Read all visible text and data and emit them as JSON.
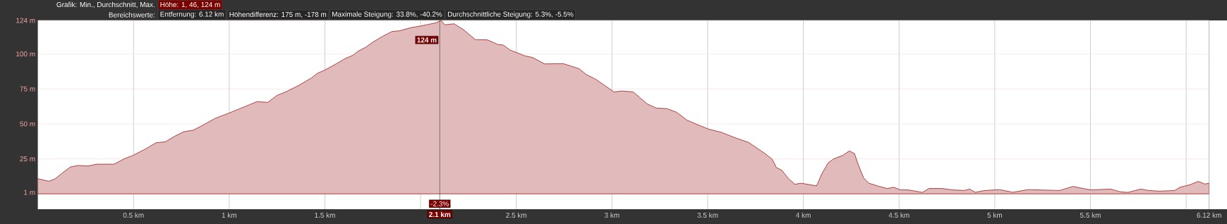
{
  "chart_data": {
    "type": "area",
    "title": "Grafik: Min., Durchschnitt, Max.",
    "subtitle": "Bereichswerte:",
    "annotations": [
      "Höhe: 1, 46, 124 m",
      "Entfernung: 6.12 km",
      "Höhendifferenz: 175 m, -178 m",
      "Maximale Steigung: 33.8%, -40.2%",
      "Durchschnittliche Steigung: 5.3%, -5.5%",
      {
        "text": "124 m",
        "x": 2.1,
        "y": 124
      },
      "-2.3%"
    ],
    "x": [
      0,
      0.057,
      0.089,
      0.13,
      0.17,
      0.211,
      0.26,
      0.308,
      0.398,
      0.455,
      0.498,
      0.568,
      0.617,
      0.666,
      0.714,
      0.763,
      0.812,
      0.86,
      0.925,
      1.0,
      1.055,
      1.104,
      1.144,
      1.201,
      1.25,
      1.299,
      1.364,
      1.429,
      1.461,
      1.498,
      1.558,
      1.607,
      1.648,
      1.672,
      1.713,
      1.753,
      1.802,
      1.851,
      1.891,
      1.948,
      2.0,
      2.078,
      2.107,
      2.126,
      2.175,
      2.224,
      2.286,
      2.349,
      2.404,
      2.432,
      2.467,
      2.544,
      2.585,
      2.648,
      2.745,
      2.787,
      2.829,
      2.864,
      2.919,
      3.01,
      3.052,
      3.111,
      3.184,
      3.232,
      3.288,
      3.337,
      3.392,
      3.441,
      3.504,
      3.573,
      3.643,
      3.713,
      3.761,
      3.803,
      3.838,
      3.859,
      3.887,
      3.921,
      3.956,
      3.987,
      4.069,
      4.096,
      4.13,
      4.158,
      4.206,
      4.24,
      4.267,
      4.287,
      4.315,
      4.342,
      4.397,
      4.438,
      4.472,
      4.506,
      4.547,
      4.588,
      4.622,
      4.656,
      4.725,
      4.779,
      4.841,
      4.868,
      4.899,
      4.943,
      5.025,
      5.094,
      5.175,
      5.339,
      5.408,
      5.462,
      5.503,
      5.606,
      5.654,
      5.695,
      5.763,
      5.804,
      5.859,
      5.94,
      5.968,
      6.022,
      6.063,
      6.098,
      6.12
    ],
    "series": [
      {
        "color": "#9b1c1c",
        "values": [
          10.8,
          9.0,
          10.6,
          15.1,
          19.2,
          20.3,
          19.9,
          21.2,
          21.2,
          25.3,
          27.5,
          32.5,
          36.5,
          37.2,
          41.1,
          44.4,
          45.5,
          48.9,
          53.9,
          57.8,
          60.9,
          63.6,
          65.9,
          65.4,
          70.4,
          73.1,
          77.6,
          82.8,
          86.2,
          88.4,
          92.9,
          96.8,
          99.2,
          101.9,
          104.8,
          108.7,
          112.7,
          116.1,
          116.6,
          118.8,
          120,
          122.2,
          124,
          120.9,
          121.6,
          117.4,
          110.3,
          110.1,
          106.8,
          106.4,
          102.9,
          98.7,
          97.5,
          92.9,
          93.1,
          91.3,
          89.4,
          85.5,
          81.6,
          72.9,
          73.5,
          72.9,
          64.3,
          61.3,
          60.9,
          58.4,
          52.7,
          49.8,
          46.3,
          43.9,
          40.1,
          36.8,
          32.4,
          28.5,
          24.6,
          18.8,
          16.9,
          11.1,
          6.8,
          7.6,
          5.7,
          14.2,
          22.2,
          25.0,
          27.5,
          30.7,
          28.8,
          20.8,
          11.4,
          7.6,
          5.3,
          3.8,
          4.7,
          2.8,
          2.8,
          1.9,
          1.0,
          3.8,
          3.8,
          2.8,
          2.4,
          3.4,
          1.1,
          2.3,
          3.0,
          1.1,
          3.0,
          2.4,
          5.3,
          3.8,
          2.8,
          3.4,
          1.5,
          1.0,
          3.4,
          2.4,
          1.9,
          2.4,
          4.7,
          6.6,
          8.9,
          7.0,
          7.6
        ]
      }
    ],
    "xlim": [
      0,
      6.12
    ],
    "ylim": [
      -11,
      124
    ],
    "xticks": [
      {
        "value": 0.5,
        "label": "0.5 km"
      },
      {
        "value": 1,
        "label": "1 km"
      },
      {
        "value": 1.5,
        "label": "1.5 km"
      },
      {
        "value": 2,
        "label": null
      },
      {
        "value": 2.5,
        "label": "2.5 km"
      },
      {
        "value": 3,
        "label": "3 km"
      },
      {
        "value": 3.5,
        "label": "3.5 km"
      },
      {
        "value": 4,
        "label": "4 km"
      },
      {
        "value": 4.5,
        "label": "4.5 km"
      },
      {
        "value": 5,
        "label": "5 km"
      },
      {
        "value": 5.5,
        "label": "5.5 km"
      },
      {
        "value": 6,
        "label": null
      },
      {
        "value": 6.12,
        "label": "6.12 km"
      }
    ],
    "yticks": [
      {
        "value": 1,
        "label": "1 m"
      },
      {
        "value": 25,
        "label": "25 m"
      },
      {
        "value": 50,
        "label": "50 m"
      },
      {
        "value": 75,
        "label": "75 m"
      },
      {
        "value": 100,
        "label": "100 m"
      },
      {
        "value": 124,
        "label": "124 m"
      }
    ],
    "grid": true,
    "ref_lines": [
      {
        "axis": "x",
        "value": 2.1,
        "label": "2.1 km"
      }
    ]
  }
}
